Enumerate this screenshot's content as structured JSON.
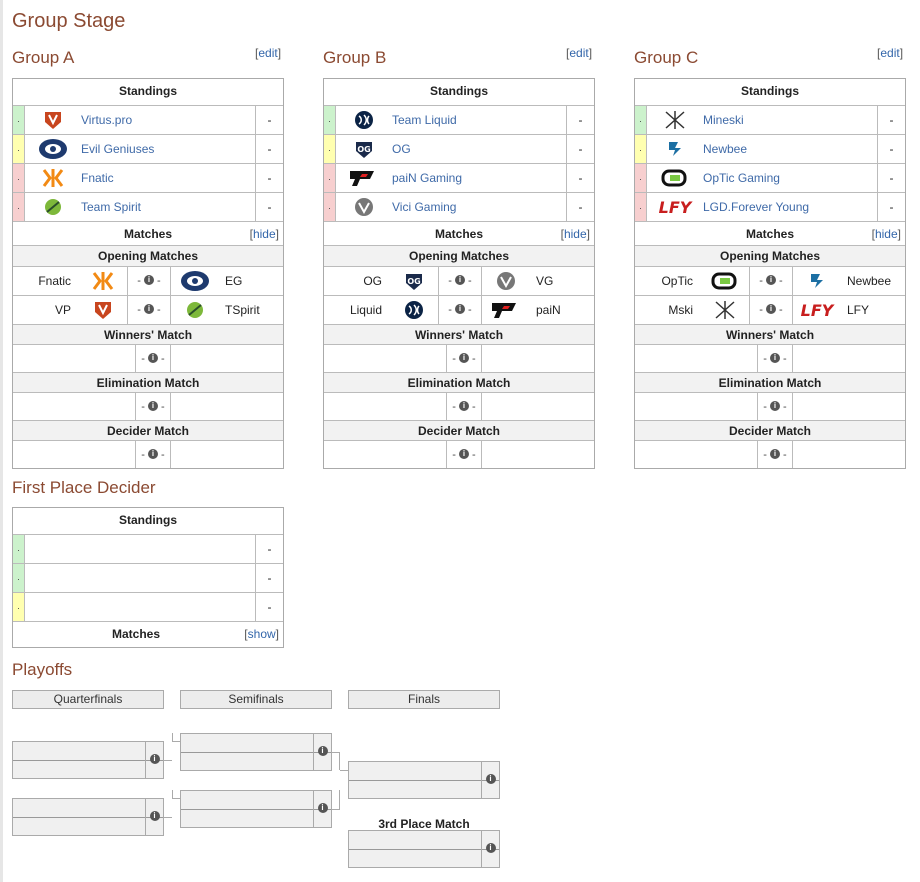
{
  "page": {
    "title": "Group Stage"
  },
  "labels": {
    "edit": "edit",
    "standings": "Standings",
    "matches": "Matches",
    "hide": "hide",
    "show": "show",
    "opening_matches": "Opening Matches",
    "winners_match": "Winners' Match",
    "elimination_match": "Elimination Match",
    "decider_match": "Decider Match",
    "dash": "-",
    "score_sep": "- i -"
  },
  "groups": [
    {
      "title": "Group A",
      "standings": [
        {
          "status": "g",
          "team": "Virtus.pro",
          "logo": "virtuspro-logo",
          "score": "-"
        },
        {
          "status": "y",
          "team": "Evil Geniuses",
          "logo": "evil-geniuses-logo",
          "score": "-"
        },
        {
          "status": "r",
          "team": "Fnatic",
          "logo": "fnatic-logo",
          "score": "-"
        },
        {
          "status": "r",
          "team": "Team Spirit",
          "logo": "team-spirit-logo",
          "score": "-"
        }
      ],
      "opening": [
        {
          "left": "Fnatic",
          "left_logo": "fnatic-logo",
          "right": "EG",
          "right_logo": "evil-geniuses-logo"
        },
        {
          "left": "VP",
          "left_logo": "virtuspro-logo",
          "right": "TSpirit",
          "right_logo": "team-spirit-logo"
        }
      ]
    },
    {
      "title": "Group B",
      "standings": [
        {
          "status": "g",
          "team": "Team Liquid",
          "logo": "team-liquid-logo",
          "score": "-"
        },
        {
          "status": "y",
          "team": "OG",
          "logo": "og-logo",
          "score": "-"
        },
        {
          "status": "r",
          "team": "paiN Gaming",
          "logo": "pain-gaming-logo",
          "score": "-"
        },
        {
          "status": "r",
          "team": "Vici Gaming",
          "logo": "vici-gaming-logo",
          "score": "-"
        }
      ],
      "opening": [
        {
          "left": "OG",
          "left_logo": "og-logo",
          "right": "VG",
          "right_logo": "vici-gaming-logo"
        },
        {
          "left": "Liquid",
          "left_logo": "team-liquid-logo",
          "right": "paiN",
          "right_logo": "pain-gaming-logo"
        }
      ]
    },
    {
      "title": "Group C",
      "standings": [
        {
          "status": "g",
          "team": "Mineski",
          "logo": "mineski-logo",
          "score": "-"
        },
        {
          "status": "y",
          "team": "Newbee",
          "logo": "newbee-logo",
          "score": "-"
        },
        {
          "status": "r",
          "team": "OpTic Gaming",
          "logo": "optic-gaming-logo",
          "score": "-"
        },
        {
          "status": "r",
          "team": "LGD.Forever Young",
          "logo": "lgd-forever-young-logo",
          "score": "-"
        }
      ],
      "opening": [
        {
          "left": "OpTic",
          "left_logo": "optic-gaming-logo",
          "right": "Newbee",
          "right_logo": "newbee-logo"
        },
        {
          "left": "Mski",
          "left_logo": "mineski-logo",
          "right": "LFY",
          "right_logo": "lgd-forever-young-logo"
        }
      ]
    }
  ],
  "first_place_decider": {
    "title": "First Place Decider",
    "standings": [
      {
        "status": "g",
        "score": "-"
      },
      {
        "status": "g",
        "score": "-"
      },
      {
        "status": "y",
        "score": "-"
      }
    ]
  },
  "playoffs": {
    "title": "Playoffs",
    "tabs": [
      "Quarterfinals",
      "Semifinals",
      "Finals"
    ],
    "third_place": "3rd Place Match"
  },
  "colors": {
    "heading": "#8b4a32",
    "link": "#3f6aa8",
    "advance": "#ccf2cc",
    "upper": "#ffffb0",
    "out": "#f7cfcf"
  }
}
